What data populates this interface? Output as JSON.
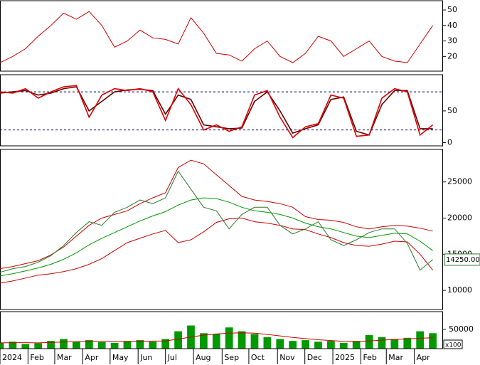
{
  "chart_data": [
    {
      "type": "line",
      "x": [
        0,
        2,
        4,
        6,
        8,
        10,
        12,
        14,
        16,
        18,
        20,
        22,
        24,
        26,
        28,
        30,
        32,
        34,
        36,
        38,
        40,
        42,
        44,
        46,
        48,
        50,
        52,
        54,
        56,
        58,
        60,
        62,
        64,
        66,
        68
      ],
      "xlim": [
        0,
        69.5
      ],
      "ylim": [
        10.5,
        56
      ],
      "yticks": [
        20,
        30,
        40,
        50
      ],
      "series": [
        {
          "color": "#cc0000",
          "values": [
            16,
            20,
            25,
            33,
            40,
            48,
            44,
            49,
            40,
            26,
            30,
            37,
            32,
            31,
            28,
            45,
            35,
            22,
            21,
            17,
            25,
            30,
            20,
            16,
            22,
            33,
            30,
            20,
            25,
            30,
            20,
            17,
            16,
            28,
            40
          ]
        }
      ]
    },
    {
      "type": "line",
      "x": [
        0,
        2,
        4,
        6,
        8,
        10,
        12,
        14,
        16,
        18,
        20,
        22,
        24,
        26,
        28,
        30,
        32,
        34,
        36,
        38,
        40,
        42,
        44,
        46,
        48,
        50,
        52,
        54,
        56,
        58,
        60,
        62,
        64,
        66,
        68
      ],
      "xlim": [
        0,
        69.5
      ],
      "ylim": [
        -5,
        107
      ],
      "yticks": [
        0,
        50
      ],
      "hlines": [
        20,
        80
      ],
      "series": [
        {
          "color": "#660000",
          "values": [
            78,
            80,
            82,
            75,
            78,
            85,
            88,
            50,
            65,
            80,
            83,
            84,
            82,
            45,
            75,
            68,
            28,
            25,
            22,
            23,
            65,
            80,
            50,
            15,
            22,
            28,
            68,
            72,
            18,
            12,
            60,
            82,
            82,
            22,
            22
          ]
        },
        {
          "color": "#dd0000",
          "values": [
            80,
            78,
            85,
            70,
            80,
            88,
            90,
            40,
            75,
            85,
            82,
            85,
            80,
            35,
            85,
            60,
            20,
            28,
            18,
            25,
            75,
            82,
            40,
            8,
            25,
            30,
            75,
            70,
            10,
            12,
            70,
            85,
            80,
            12,
            28
          ]
        }
      ]
    },
    {
      "type": "line",
      "x": [
        0,
        2,
        4,
        6,
        8,
        10,
        12,
        14,
        16,
        18,
        20,
        22,
        24,
        26,
        28,
        30,
        32,
        34,
        36,
        38,
        40,
        42,
        44,
        46,
        48,
        50,
        52,
        54,
        56,
        58,
        60,
        62,
        64,
        66,
        68
      ],
      "xlim": [
        0,
        69.5
      ],
      "ylim": [
        7350,
        29500
      ],
      "yticks": [
        10000,
        15000,
        20000,
        25000
      ],
      "last_price": {
        "value": 14250,
        "label": "14250.00"
      },
      "series": [
        {
          "color": "#cc0000",
          "values": [
            13000,
            13300,
            13700,
            14100,
            14900,
            16000,
            17500,
            19000,
            20000,
            20500,
            21000,
            22000,
            22800,
            23500,
            27000,
            28000,
            27500,
            26000,
            24500,
            23000,
            22500,
            22300,
            22000,
            21500,
            20200,
            19800,
            19700,
            19400,
            18800,
            18500,
            18800,
            19000,
            18900,
            18600,
            18200
          ]
        },
        {
          "color": "#cc0000",
          "values": [
            11000,
            11300,
            11700,
            12100,
            12300,
            12600,
            13000,
            13600,
            14400,
            15500,
            16600,
            17200,
            17800,
            18300,
            16600,
            17000,
            18100,
            19400,
            19900,
            20000,
            19500,
            19300,
            19000,
            18500,
            18400,
            17800,
            17300,
            16600,
            16200,
            16100,
            16400,
            16800,
            16700,
            15000,
            12800
          ]
        },
        {
          "color": "#009900",
          "values": [
            12000,
            12300,
            12700,
            13100,
            13600,
            14300,
            15200,
            16300,
            17200,
            18000,
            18800,
            19600,
            20300,
            20900,
            21800,
            22500,
            22800,
            22700,
            22200,
            21500,
            21000,
            20800,
            20500,
            20000,
            19300,
            18800,
            18500,
            18000,
            17500,
            17300,
            17600,
            17900,
            17800,
            16800,
            15500
          ]
        },
        {
          "color": "#2a7a2a",
          "values": [
            12500,
            13000,
            13300,
            13900,
            14800,
            16200,
            18000,
            19500,
            19000,
            20800,
            21500,
            22500,
            22000,
            22800,
            26500,
            24000,
            21500,
            21000,
            18500,
            20500,
            21500,
            21500,
            19000,
            17800,
            18500,
            19500,
            17000,
            16200,
            17000,
            18000,
            18500,
            18500,
            16500,
            12800,
            14250
          ]
        }
      ]
    },
    {
      "type": "bar",
      "x": [
        0,
        2,
        4,
        6,
        8,
        10,
        12,
        14,
        16,
        18,
        20,
        22,
        24,
        26,
        28,
        30,
        32,
        34,
        36,
        38,
        40,
        42,
        44,
        46,
        48,
        50,
        52,
        54,
        56,
        58,
        60,
        62,
        64,
        66,
        68
      ],
      "xlim": [
        0,
        69.5
      ],
      "ylim": [
        0,
        96000
      ],
      "yticks": [
        50000
      ],
      "unit_label": "x100",
      "xticks": [
        {
          "value": 0,
          "label": "2024"
        },
        {
          "value": 4.4,
          "label": "Feb"
        },
        {
          "value": 8.6,
          "label": "Mar"
        },
        {
          "value": 13,
          "label": "Apr"
        },
        {
          "value": 17.3,
          "label": "May"
        },
        {
          "value": 21.7,
          "label": "Jun"
        },
        {
          "value": 26,
          "label": "Jul"
        },
        {
          "value": 30.4,
          "label": "Aug"
        },
        {
          "value": 34.9,
          "label": "Sep"
        },
        {
          "value": 39.1,
          "label": "Oct"
        },
        {
          "value": 43.6,
          "label": "Nov"
        },
        {
          "value": 47.9,
          "label": "Dec"
        },
        {
          "value": 52.3,
          "label": "2025"
        },
        {
          "value": 56.7,
          "label": "Feb"
        },
        {
          "value": 60.7,
          "label": "Mar"
        },
        {
          "value": 65.1,
          "label": "Apr"
        }
      ],
      "series": [
        {
          "type": "bar",
          "color": "#009900",
          "values": [
            15000,
            18000,
            12000,
            14000,
            20000,
            25000,
            18000,
            22000,
            17000,
            15000,
            20000,
            22000,
            18000,
            25000,
            45000,
            60000,
            40000,
            38000,
            55000,
            45000,
            38000,
            30000,
            25000,
            20000,
            22000,
            18000,
            20000,
            15000,
            20000,
            35000,
            30000,
            25000,
            28000,
            45000,
            40000
          ]
        },
        {
          "type": "line",
          "color": "#cc0000",
          "values": [
            15000,
            15500,
            15500,
            15000,
            16000,
            17000,
            18000,
            19000,
            19000,
            18500,
            18500,
            19000,
            19500,
            20000,
            25000,
            30000,
            35000,
            38000,
            40000,
            41000,
            40000,
            37000,
            33000,
            29000,
            26000,
            23000,
            21000,
            19000,
            18000,
            20000,
            22000,
            24000,
            25000,
            27000,
            28000
          ]
        }
      ]
    }
  ]
}
